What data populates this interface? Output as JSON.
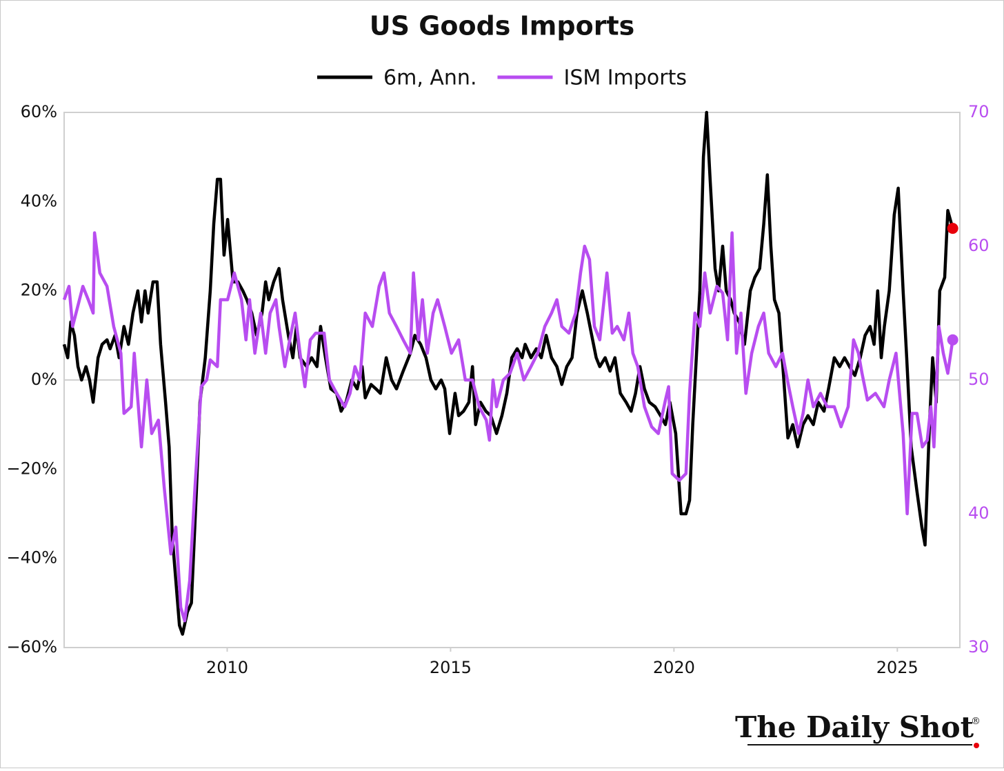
{
  "chart_data": {
    "type": "line",
    "title": "US Goods Imports",
    "legend": "top",
    "grid": false,
    "xlim": [
      2006.35,
      2026.4
    ],
    "xticks": [
      2010,
      2015,
      2020,
      2025
    ],
    "ylim": [
      -60,
      60
    ],
    "yticks": [
      {
        "value": -60,
        "label": "−60%"
      },
      {
        "value": -40,
        "label": "−40%"
      },
      {
        "value": -20,
        "label": "−20%"
      },
      {
        "value": 0,
        "label": "0%"
      },
      {
        "value": 20,
        "label": "20%"
      },
      {
        "value": 40,
        "label": "40%"
      },
      {
        "value": 60,
        "label": "60%"
      }
    ],
    "y2lim": [
      30,
      70
    ],
    "y2ticks": [
      30,
      40,
      50,
      60,
      70
    ],
    "y2color": "#b84df0",
    "series": [
      {
        "name": "6m, Ann.",
        "color": "#000000",
        "axis": "y",
        "end_marker_color": "#e8000b",
        "x": [
          2006.35,
          2006.43,
          2006.5,
          2006.58,
          2006.66,
          2006.74,
          2006.84,
          2006.92,
          2007.0,
          2007.11,
          2007.2,
          2007.31,
          2007.38,
          2007.49,
          2007.58,
          2007.69,
          2007.79,
          2007.89,
          2008.0,
          2008.08,
          2008.16,
          2008.23,
          2008.34,
          2008.43,
          2008.51,
          2008.62,
          2008.7,
          2008.77,
          2008.85,
          2008.93,
          2009.0,
          2009.11,
          2009.2,
          2009.31,
          2009.39,
          2009.51,
          2009.62,
          2009.7,
          2009.78,
          2009.85,
          2009.93,
          2010.01,
          2010.13,
          2010.24,
          2010.35,
          2010.44,
          2010.55,
          2010.66,
          2010.78,
          2010.86,
          2010.93,
          2011.04,
          2011.16,
          2011.24,
          2011.37,
          2011.47,
          2011.55,
          2011.63,
          2011.78,
          2011.89,
          2012.01,
          2012.09,
          2012.2,
          2012.32,
          2012.45,
          2012.55,
          2012.66,
          2012.79,
          2012.91,
          2013.02,
          2013.09,
          2013.22,
          2013.33,
          2013.43,
          2013.56,
          2013.68,
          2013.79,
          2013.94,
          2014.1,
          2014.2,
          2014.33,
          2014.45,
          2014.56,
          2014.67,
          2014.79,
          2014.87,
          2014.98,
          2015.1,
          2015.18,
          2015.29,
          2015.41,
          2015.49,
          2015.56,
          2015.67,
          2015.79,
          2015.9,
          2016.03,
          2016.15,
          2016.26,
          2016.37,
          2016.49,
          2016.6,
          2016.67,
          2016.8,
          2016.92,
          2017.03,
          2017.14,
          2017.26,
          2017.38,
          2017.49,
          2017.6,
          2017.72,
          2017.83,
          2017.95,
          2018.06,
          2018.16,
          2018.26,
          2018.34,
          2018.46,
          2018.57,
          2018.68,
          2018.8,
          2018.93,
          2019.04,
          2019.14,
          2019.24,
          2019.34,
          2019.45,
          2019.58,
          2019.7,
          2019.81,
          2019.91,
          2020.04,
          2020.16,
          2020.27,
          2020.35,
          2020.42,
          2020.5,
          2020.58,
          2020.66,
          2020.73,
          2020.81,
          2020.92,
          2021.0,
          2021.09,
          2021.17,
          2021.27,
          2021.35,
          2021.46,
          2021.58,
          2021.71,
          2021.81,
          2021.92,
          2022.01,
          2022.09,
          2022.17,
          2022.25,
          2022.35,
          2022.46,
          2022.55,
          2022.66,
          2022.77,
          2022.89,
          2023.0,
          2023.12,
          2023.23,
          2023.36,
          2023.46,
          2023.59,
          2023.71,
          2023.82,
          2023.93,
          2024.05,
          2024.17,
          2024.28,
          2024.39,
          2024.48,
          2024.56,
          2024.64,
          2024.71,
          2024.82,
          2024.93,
          2025.02,
          2025.13,
          2025.21,
          2025.31,
          2025.44,
          2025.55,
          2025.62,
          2025.72,
          2025.79,
          2025.87,
          2025.95,
          2026.06,
          2026.13,
          2026.24
        ],
        "values": [
          8,
          5,
          13,
          10,
          3,
          0,
          3,
          0,
          -5,
          5,
          8,
          9,
          7,
          10,
          5,
          12,
          8,
          15,
          20,
          13,
          20,
          15,
          22,
          22,
          8,
          -5,
          -15,
          -35,
          -45,
          -55,
          -57,
          -52,
          -50,
          -25,
          -5,
          5,
          20,
          35,
          45,
          45,
          28,
          36,
          22,
          22,
          20,
          18,
          15,
          10,
          15,
          22,
          18,
          22,
          25,
          18,
          10,
          5,
          12,
          5,
          3,
          5,
          3,
          12,
          5,
          -2,
          -3,
          -7,
          -5,
          0,
          -2,
          3,
          -4,
          -1,
          -2,
          -3,
          5,
          0,
          -2,
          2,
          6,
          10,
          8,
          5,
          0,
          -2,
          0,
          -2,
          -12,
          -3,
          -8,
          -7,
          -5,
          3,
          -10,
          -5,
          -7,
          -8,
          -12,
          -8,
          -3,
          5,
          7,
          5,
          8,
          5,
          7,
          5,
          10,
          5,
          3,
          -1,
          3,
          5,
          15,
          20,
          15,
          10,
          5,
          3,
          5,
          2,
          5,
          -3,
          -5,
          -7,
          -3,
          3,
          -2,
          -5,
          -6,
          -8,
          -10,
          -5,
          -12,
          -30,
          -30,
          -27,
          -10,
          5,
          20,
          50,
          60,
          45,
          25,
          20,
          30,
          20,
          18,
          15,
          13,
          8,
          20,
          23,
          25,
          35,
          46,
          30,
          18,
          15,
          0,
          -13,
          -10,
          -15,
          -10,
          -8,
          -10,
          -5,
          -7,
          -2,
          5,
          3,
          5,
          3,
          1,
          5,
          10,
          12,
          8,
          20,
          5,
          12,
          20,
          37,
          43,
          20,
          5,
          -15,
          -25,
          -33,
          -37,
          -10,
          5,
          -5,
          20,
          23,
          38,
          34
        ]
      },
      {
        "name": "ISM Imports",
        "color": "#b84df0",
        "axis": "y2",
        "end_marker_color": "#b84df0",
        "x": [
          2006.35,
          2006.46,
          2006.54,
          2006.77,
          2006.89,
          2007.0,
          2007.03,
          2007.15,
          2007.31,
          2007.46,
          2007.62,
          2007.69,
          2007.85,
          2007.92,
          2008.08,
          2008.2,
          2008.31,
          2008.46,
          2008.59,
          2008.74,
          2008.85,
          2008.96,
          2009.05,
          2009.16,
          2009.28,
          2009.42,
          2009.54,
          2009.62,
          2009.78,
          2009.85,
          2010.01,
          2010.16,
          2010.32,
          2010.42,
          2010.5,
          2010.62,
          2010.75,
          2010.86,
          2010.96,
          2011.09,
          2011.16,
          2011.29,
          2011.4,
          2011.52,
          2011.63,
          2011.74,
          2011.86,
          2011.98,
          2012.17,
          2012.29,
          2012.45,
          2012.63,
          2012.75,
          2012.86,
          2012.97,
          2013.09,
          2013.25,
          2013.4,
          2013.51,
          2013.63,
          2013.79,
          2013.94,
          2014.1,
          2014.17,
          2014.28,
          2014.37,
          2014.48,
          2014.61,
          2014.71,
          2014.87,
          2015.02,
          2015.18,
          2015.33,
          2015.49,
          2015.64,
          2015.8,
          2015.87,
          2015.95,
          2016.03,
          2016.18,
          2016.33,
          2016.49,
          2016.64,
          2016.8,
          2016.95,
          2017.11,
          2017.26,
          2017.38,
          2017.49,
          2017.65,
          2017.8,
          2017.91,
          2018.0,
          2018.11,
          2018.22,
          2018.34,
          2018.5,
          2018.62,
          2018.73,
          2018.88,
          2018.99,
          2019.08,
          2019.19,
          2019.34,
          2019.5,
          2019.65,
          2019.81,
          2019.88,
          2019.96,
          2020.12,
          2020.27,
          2020.35,
          2020.47,
          2020.58,
          2020.69,
          2020.81,
          2020.96,
          2021.09,
          2021.2,
          2021.3,
          2021.4,
          2021.5,
          2021.61,
          2021.74,
          2021.89,
          2022.01,
          2022.12,
          2022.28,
          2022.43,
          2022.54,
          2022.66,
          2022.79,
          2022.89,
          2023.0,
          2023.12,
          2023.28,
          2023.43,
          2023.59,
          2023.74,
          2023.9,
          2024.02,
          2024.13,
          2024.21,
          2024.33,
          2024.51,
          2024.7,
          2024.82,
          2024.97,
          2025.13,
          2025.22,
          2025.33,
          2025.44,
          2025.56,
          2025.67,
          2025.75,
          2025.82,
          2025.93,
          2026.03,
          2026.13,
          2026.24
        ],
        "values": [
          56,
          57,
          54,
          57,
          56,
          55,
          61,
          58,
          57,
          54,
          52,
          47.5,
          48,
          52,
          45,
          50,
          46,
          47,
          42,
          37,
          39,
          33,
          32,
          35,
          42,
          49.5,
          50,
          51.5,
          51,
          56,
          56,
          58,
          56,
          53,
          56,
          52,
          55,
          52,
          55,
          56,
          54,
          51,
          53,
          55,
          52,
          49.5,
          53,
          53.5,
          53.5,
          50,
          49,
          48,
          49,
          51,
          50,
          55,
          54,
          57,
          58,
          55,
          54,
          53,
          52,
          58,
          53,
          56,
          52,
          55,
          56,
          54,
          52,
          53,
          50,
          50,
          48,
          47,
          45.5,
          50,
          48,
          50,
          50.5,
          52,
          50,
          51,
          52,
          54,
          55,
          56,
          54,
          53.5,
          55,
          58,
          60,
          59,
          54,
          53,
          58,
          53.5,
          54,
          53,
          55,
          52,
          51,
          48,
          46.5,
          46,
          48.5,
          49.5,
          43,
          42.5,
          43,
          49,
          55,
          54,
          58,
          55,
          57,
          56.5,
          53,
          61,
          52,
          55,
          49,
          52,
          54,
          55,
          52,
          51,
          52,
          50,
          48,
          46,
          47.5,
          50,
          48,
          49,
          48,
          48,
          46.5,
          48,
          53,
          52,
          50.5,
          48.5,
          49,
          48,
          50,
          52,
          46,
          40,
          47.5,
          47.5,
          45,
          45.5,
          48,
          45,
          54,
          52,
          50.5,
          53
        ]
      }
    ],
    "logo": {
      "text": "The Daily Shot",
      "mark": "®"
    }
  }
}
